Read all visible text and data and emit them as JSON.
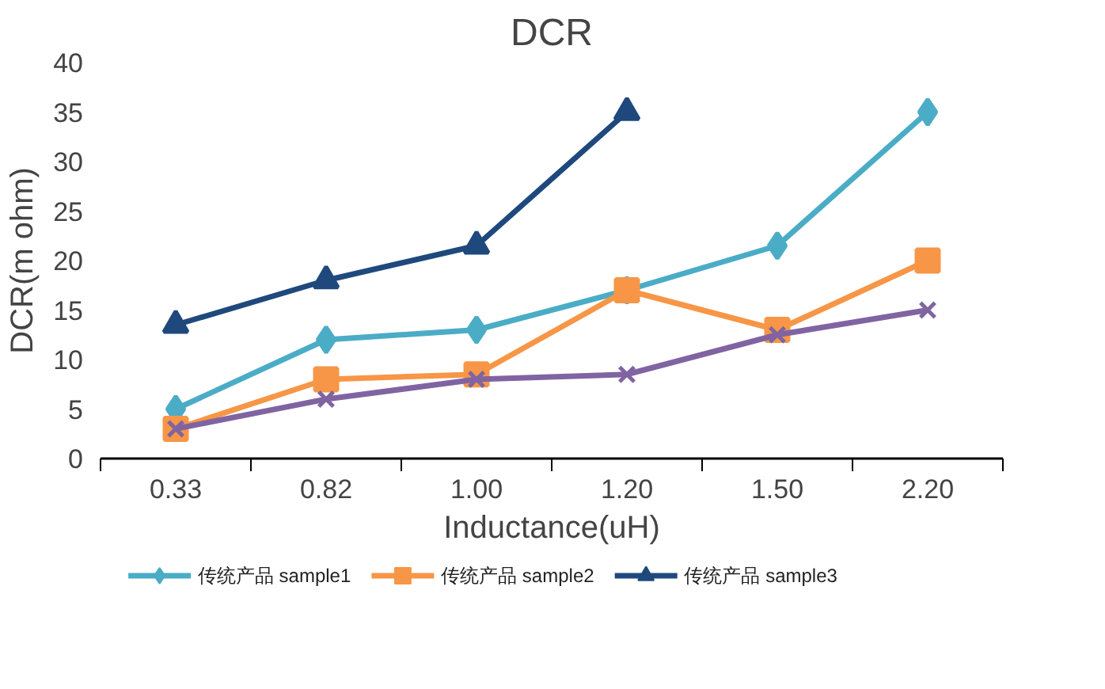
{
  "chart_data": {
    "type": "line",
    "title": "DCR",
    "xlabel": "Inductance(uH)",
    "ylabel": "DCR(m ohm)",
    "categories": [
      "0.33",
      "0.82",
      "1.00",
      "1.20",
      "1.50",
      "2.20"
    ],
    "ylim": [
      0,
      40
    ],
    "yticks": [
      0,
      5,
      10,
      15,
      20,
      25,
      30,
      35,
      40
    ],
    "grid": false,
    "legend": "bottom",
    "series": [
      {
        "name": "传统产品 sample1",
        "color": "#4bacc6",
        "marker": "diamond",
        "values": [
          5,
          12,
          13,
          17,
          21.5,
          35
        ]
      },
      {
        "name": "传统产品 sample2",
        "color": "#f79646",
        "marker": "square",
        "values": [
          3,
          8,
          8.5,
          17,
          13,
          20
        ]
      },
      {
        "name": "传统产品 sample3",
        "color": "#1f497d",
        "marker": "triangle",
        "values": [
          13.5,
          18,
          21.5,
          35,
          null,
          null
        ]
      },
      {
        "color": "#8064a2",
        "marker": "x",
        "values": [
          3,
          6,
          8,
          8.5,
          12.5,
          15
        ]
      }
    ]
  }
}
